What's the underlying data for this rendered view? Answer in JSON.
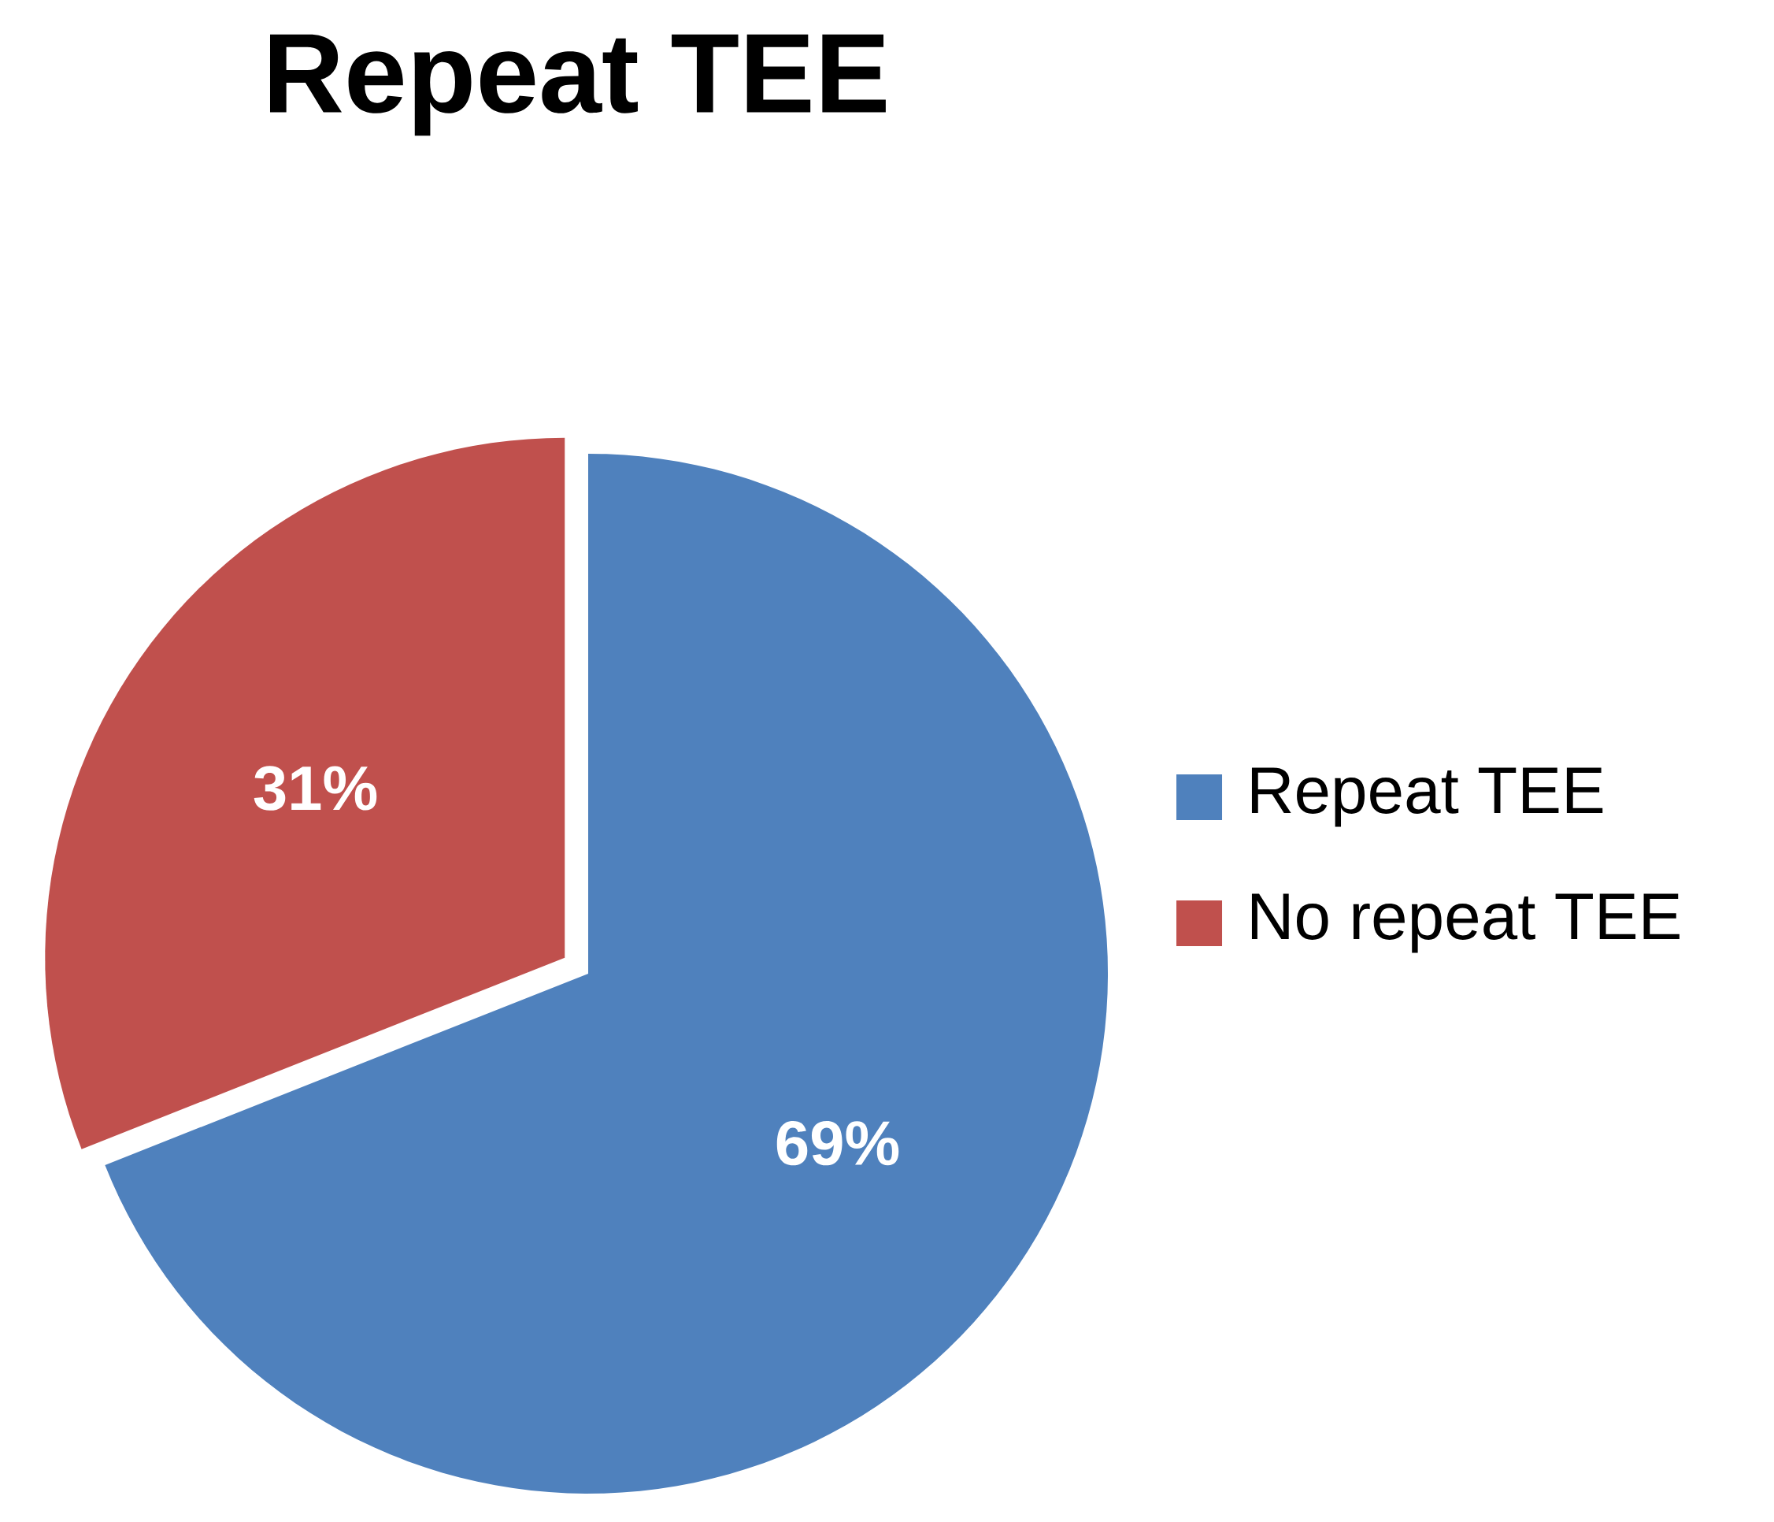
{
  "chart_data": {
    "type": "pie",
    "title": "Repeat TEE",
    "categories": [
      "Repeat TEE",
      "No repeat TEE"
    ],
    "values": [
      69,
      31
    ],
    "colors": [
      "#4f81bd",
      "#c0504d"
    ],
    "value_labels": [
      "69%",
      "31%"
    ],
    "legend": "right"
  }
}
